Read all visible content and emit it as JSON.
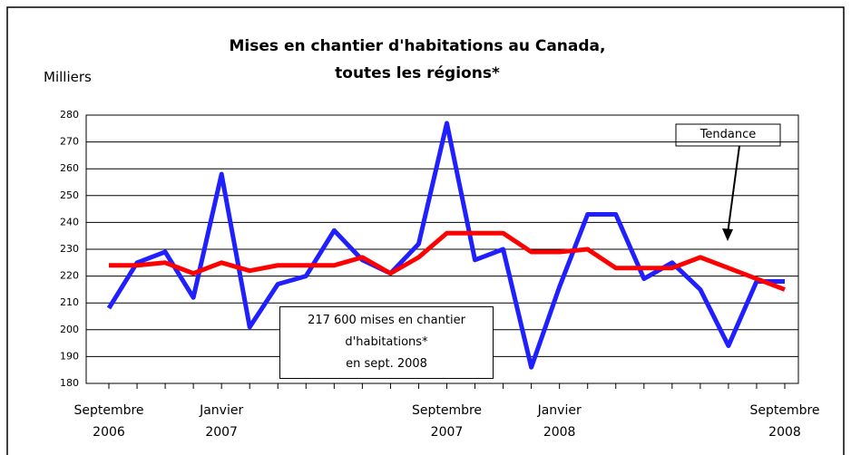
{
  "chart_data": {
    "type": "line",
    "title": "Mises en chantier d'habitations au Canada,\ntoutes les régions*",
    "y_label": "Milliers",
    "annotation": "217 600 mises en chantier\nd'habitations*\nen sept. 2008",
    "categories": [
      "Septembre\n2006",
      null,
      null,
      null,
      "Janvier\n2007",
      null,
      null,
      null,
      null,
      null,
      null,
      null,
      "Septembre\n2007",
      null,
      null,
      null,
      "Janvier\n2008",
      null,
      null,
      null,
      null,
      null,
      null,
      null,
      "Septembre\n2008"
    ],
    "series": [
      {
        "color": "#1f1fff",
        "values": [
          208,
          225,
          229,
          212,
          258,
          201,
          217,
          220,
          237,
          226,
          221,
          232,
          277,
          226,
          230,
          186,
          216,
          243,
          243,
          219,
          225,
          215,
          194,
          218,
          218
        ]
      },
      {
        "name": "Tendance",
        "color": "#ff0000",
        "values": [
          224,
          224,
          225,
          221,
          225,
          222,
          224,
          224,
          224,
          227,
          221,
          227,
          236,
          236,
          236,
          229,
          229,
          230,
          223,
          223,
          223,
          227,
          223,
          219,
          215
        ]
      }
    ],
    "ylim": [
      180,
      280
    ],
    "yticks": [
      180,
      190,
      200,
      210,
      220,
      230,
      240,
      250,
      260,
      270,
      280
    ],
    "grid": true
  }
}
